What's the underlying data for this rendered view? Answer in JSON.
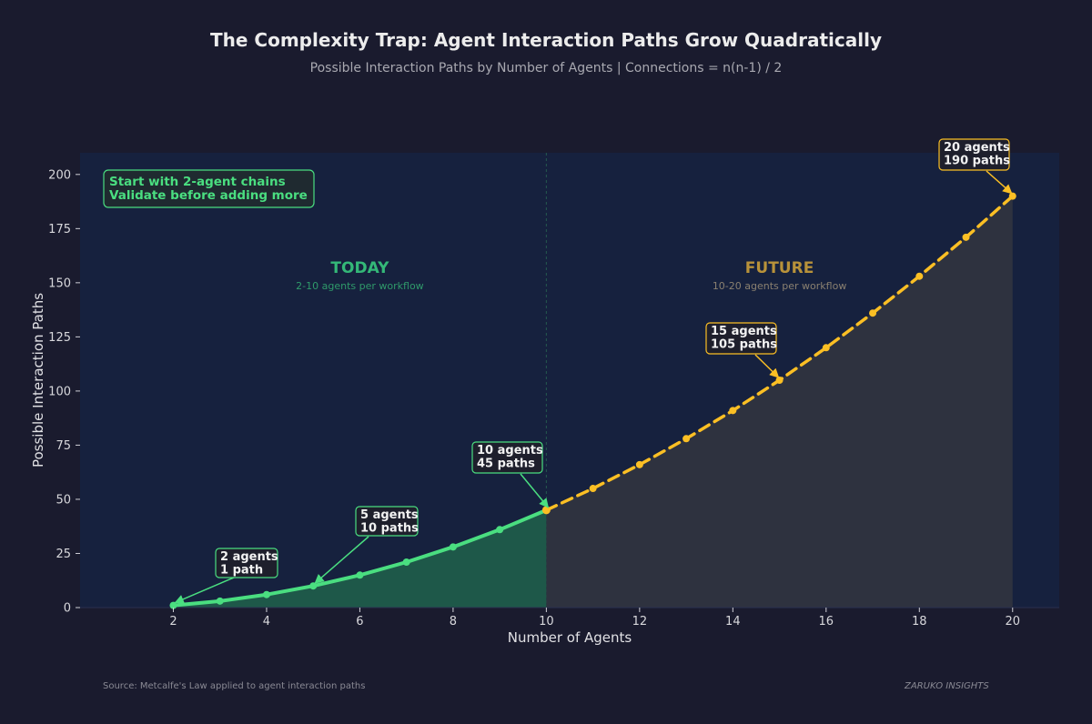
{
  "title": "The Complexity Trap: Agent Interaction Paths Grow Quadratically",
  "subtitle": "Possible Interaction Paths by Number of Agents  |  Connections = n(n-1) / 2",
  "footer": {
    "source": "Source: Metcalfe's Law applied to agent interaction paths",
    "brand": "ZARUKO INSIGHTS"
  },
  "colors": {
    "background": "#1a1b2e",
    "plot_background": "#16213e",
    "today": "#4ade80",
    "future": "#fbbf24",
    "today_fill": "#1f5c4a",
    "future_fill": "#2f333f"
  },
  "chart_data": {
    "type": "line",
    "title": "The Complexity Trap: Agent Interaction Paths Grow Quadratically",
    "subtitle": "Possible Interaction Paths by Number of Agents  |  Connections = n(n-1) / 2",
    "xlabel": "Number of Agents",
    "ylabel": "Possible Interaction Paths",
    "xlim": [
      0,
      21
    ],
    "ylim": [
      0,
      210
    ],
    "xticks": [
      2,
      4,
      6,
      8,
      10,
      12,
      14,
      16,
      18,
      20
    ],
    "yticks": [
      0,
      25,
      50,
      75,
      100,
      125,
      150,
      175,
      200
    ],
    "grid": false,
    "series": [
      {
        "name": "",
        "style": "solid",
        "x": [
          2,
          3,
          4,
          5,
          6,
          7,
          8,
          9,
          10
        ],
        "values": [
          1,
          3,
          6,
          10,
          15,
          21,
          28,
          36,
          45
        ]
      },
      {
        "name": "",
        "style": "dashed",
        "x": [
          10,
          11,
          12,
          13,
          14,
          15,
          16,
          17,
          18,
          19,
          20
        ],
        "values": [
          45,
          55,
          66,
          78,
          91,
          105,
          120,
          136,
          153,
          171,
          190
        ]
      }
    ],
    "regions": [
      {
        "title": "TODAY",
        "subtitle": "2-10 agents per workflow",
        "x_range": [
          0,
          10
        ]
      },
      {
        "title": "FUTURE",
        "subtitle": "10-20 agents per workflow",
        "x_range": [
          10,
          21
        ]
      }
    ],
    "annotations": [
      {
        "lines": [
          "2 agents",
          "1 path"
        ],
        "x": 2,
        "y": 1,
        "series": "today"
      },
      {
        "lines": [
          "5 agents",
          "10 paths"
        ],
        "x": 5,
        "y": 10,
        "series": "today"
      },
      {
        "lines": [
          "10 agents",
          "45 paths"
        ],
        "x": 10,
        "y": 45,
        "series": "today"
      },
      {
        "lines": [
          "15 agents",
          "105 paths"
        ],
        "x": 15,
        "y": 105,
        "series": "future"
      },
      {
        "lines": [
          "20 agents",
          "190 paths"
        ],
        "x": 20,
        "y": 190,
        "series": "future"
      }
    ],
    "callout": {
      "lines": [
        "Start with 2-agent chains",
        "Validate before adding more"
      ]
    }
  }
}
